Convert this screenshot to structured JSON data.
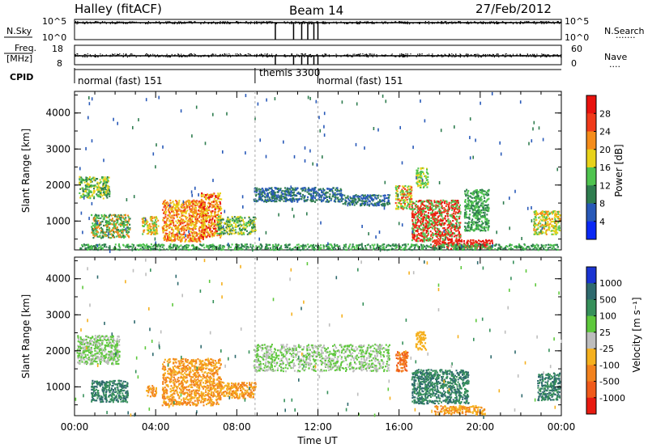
{
  "header": {
    "station": "Halley (fitACF)",
    "beam": "Beam 14",
    "date": "27/Feb/2012"
  },
  "status_panel": {
    "nsky_label": "N.Sky",
    "nsky_ticks": [
      "10^5",
      "10^0"
    ],
    "nsearch_label": "N.Search",
    "nsearch_ticks": [
      "10^5",
      "10^0"
    ],
    "freq_label_line1": "Freq.",
    "freq_label_line2": "[MHz]",
    "freq_ticks": [
      "18",
      "8"
    ],
    "nave_label": "Nave",
    "nave_ticks": [
      "60",
      "0"
    ],
    "cpid_label": "CPID",
    "cpid_segments": [
      {
        "label": "normal (fast) 151",
        "start_hour": 0,
        "end_hour": 8.9
      },
      {
        "label": "themis 3300",
        "start_hour": 8.9,
        "end_hour": 12
      },
      {
        "label": "normal (fast) 151",
        "start_hour": 12,
        "end_hour": 24
      }
    ]
  },
  "x_axis": {
    "label": "Time UT",
    "ticks": [
      "00:00",
      "04:00",
      "08:00",
      "12:00",
      "16:00",
      "20:00",
      "00:00"
    ]
  },
  "chart_data": [
    {
      "type": "heatmap",
      "ylabel": "Slant Range [km]",
      "yticks": [
        "1000",
        "2000",
        "3000",
        "4000"
      ],
      "ylim": [
        200,
        4600
      ],
      "xlim_hours": [
        0,
        24
      ],
      "colorbar_label": "Power [dB]",
      "colorbar_ticks": [
        "4",
        "8",
        "12",
        "16",
        "20",
        "24",
        "28"
      ],
      "colorbar_colors": [
        "#0a28f5",
        "#2859b8",
        "#2f7d4f",
        "#4fc44f",
        "#e8d21a",
        "#f58c1a",
        "#f03a1a",
        "#e8120e"
      ],
      "patches": [
        {
          "x0": 0.2,
          "x1": 1.7,
          "y0": 1650,
          "y1": 2250,
          "values": [
            12,
            16,
            10
          ]
        },
        {
          "x0": 0.8,
          "x1": 2.7,
          "y0": 550,
          "y1": 1200,
          "values": [
            12,
            20,
            8
          ]
        },
        {
          "x0": 3.3,
          "x1": 4.1,
          "y0": 650,
          "y1": 1150,
          "values": [
            16,
            20,
            12
          ]
        },
        {
          "x0": 4.3,
          "x1": 6.4,
          "y0": 450,
          "y1": 1600,
          "values": [
            20,
            24,
            16
          ]
        },
        {
          "x0": 6.2,
          "x1": 7.2,
          "y0": 550,
          "y1": 1800,
          "values": [
            20,
            28,
            16
          ]
        },
        {
          "x0": 7.0,
          "x1": 8.9,
          "y0": 650,
          "y1": 1150,
          "values": [
            8,
            12,
            16
          ]
        },
        {
          "x0": 8.8,
          "x1": 13.2,
          "y0": 1550,
          "y1": 1950,
          "values": [
            4,
            8
          ]
        },
        {
          "x0": 13.2,
          "x1": 15.5,
          "y0": 1450,
          "y1": 1750,
          "values": [
            4,
            8
          ]
        },
        {
          "x0": 15.8,
          "x1": 16.6,
          "y0": 1350,
          "y1": 2000,
          "values": [
            16,
            24,
            12
          ]
        },
        {
          "x0": 16.8,
          "x1": 17.4,
          "y0": 1950,
          "y1": 2500,
          "values": [
            12,
            16
          ]
        },
        {
          "x0": 16.6,
          "x1": 19.0,
          "y0": 450,
          "y1": 1600,
          "values": [
            24,
            28,
            12
          ]
        },
        {
          "x0": 17.6,
          "x1": 20.6,
          "y0": 250,
          "y1": 500,
          "values": [
            28,
            24
          ]
        },
        {
          "x0": 19.2,
          "x1": 20.4,
          "y0": 750,
          "y1": 1900,
          "values": [
            12,
            8
          ]
        },
        {
          "x0": 22.6,
          "x1": 23.9,
          "y0": 650,
          "y1": 1300,
          "values": [
            12,
            20,
            16
          ]
        },
        {
          "x0": 0.2,
          "x1": 23.8,
          "y0": 220,
          "y1": 380,
          "values": [
            8,
            12
          ]
        }
      ]
    },
    {
      "type": "heatmap",
      "ylabel": "Slant Range [km]",
      "yticks": [
        "1000",
        "2000",
        "3000",
        "4000"
      ],
      "ylim": [
        200,
        4600
      ],
      "xlim_hours": [
        0,
        24
      ],
      "colorbar_label": "Velocity [m s⁻¹]",
      "colorbar_ticks": [
        "1000",
        "500",
        "100",
        "25",
        "-25",
        "-100",
        "-500",
        "-1000"
      ],
      "colorbar_colors": [
        "#1a34d2",
        "#2f6a6e",
        "#36905a",
        "#5ec83c",
        "#bdbdbd",
        "#f5b01e",
        "#f2821e",
        "#f05a1a",
        "#e81a10"
      ],
      "patches": [
        {
          "x0": 0.1,
          "x1": 2.2,
          "y0": 1650,
          "y1": 2450,
          "values": [
            25,
            -25
          ]
        },
        {
          "x0": 0.8,
          "x1": 2.6,
          "y0": 600,
          "y1": 1200,
          "values": [
            100,
            500
          ]
        },
        {
          "x0": 3.5,
          "x1": 4.0,
          "y0": 750,
          "y1": 1050,
          "values": [
            -500,
            -100
          ]
        },
        {
          "x0": 4.3,
          "x1": 7.2,
          "y0": 500,
          "y1": 1800,
          "values": [
            -500,
            -100
          ]
        },
        {
          "x0": 7.0,
          "x1": 8.9,
          "y0": 700,
          "y1": 1150,
          "values": [
            -100,
            -500
          ]
        },
        {
          "x0": 8.8,
          "x1": 15.5,
          "y0": 1450,
          "y1": 2200,
          "values": [
            25,
            -25
          ]
        },
        {
          "x0": 15.8,
          "x1": 16.4,
          "y0": 1450,
          "y1": 2000,
          "values": [
            -1000,
            -500
          ]
        },
        {
          "x0": 16.8,
          "x1": 17.3,
          "y0": 2050,
          "y1": 2550,
          "values": [
            -100
          ]
        },
        {
          "x0": 16.6,
          "x1": 19.4,
          "y0": 550,
          "y1": 1500,
          "values": [
            100,
            500
          ]
        },
        {
          "x0": 17.7,
          "x1": 20.2,
          "y0": 250,
          "y1": 500,
          "values": [
            -500,
            -100
          ]
        },
        {
          "x0": 22.8,
          "x1": 23.9,
          "y0": 650,
          "y1": 1400,
          "values": [
            100,
            500
          ]
        }
      ]
    }
  ]
}
